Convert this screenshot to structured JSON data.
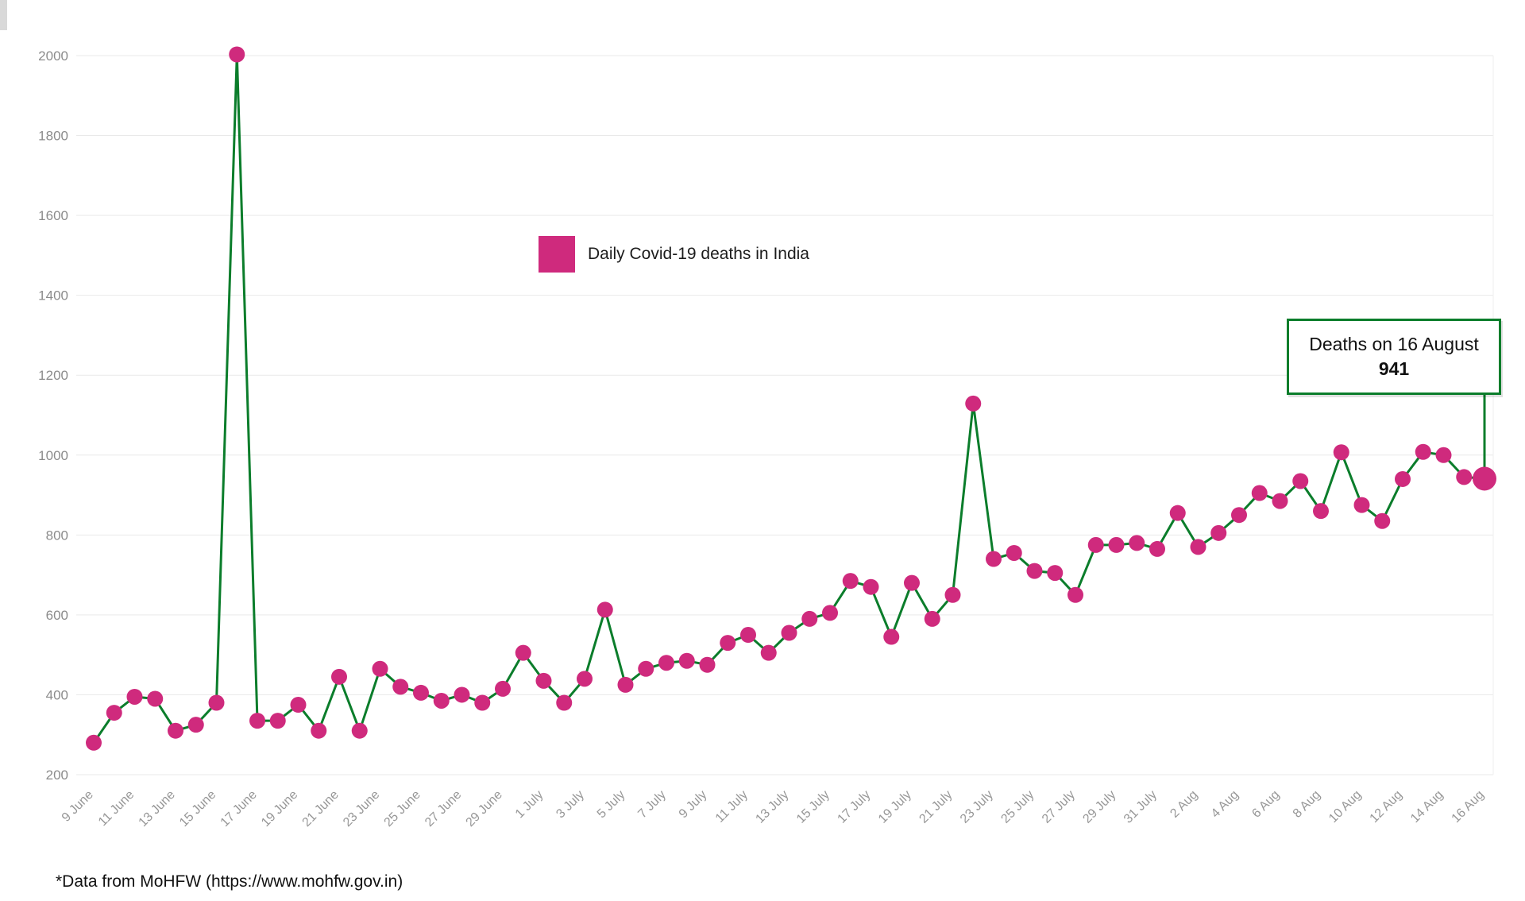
{
  "page": {
    "footer_note": "*Data from MoHFW (https://www.mohfw.gov.in)"
  },
  "legend": {
    "label": "Daily Covid-19 deaths in India"
  },
  "annotation": {
    "title": "Deaths on 16 August",
    "value": "941"
  },
  "chart_data": {
    "type": "line",
    "title": "Daily Covid-19 deaths in India",
    "x": [
      "9 June",
      "10 June",
      "11 June",
      "12 June",
      "13 June",
      "14 June",
      "15 June",
      "16 June",
      "17 June",
      "18 June",
      "19 June",
      "20 June",
      "21 June",
      "22 June",
      "23 June",
      "24 June",
      "25 June",
      "26 June",
      "27 June",
      "28 June",
      "29 June",
      "30 June",
      "1 July",
      "2 July",
      "3 July",
      "4 July",
      "5 July",
      "6 July",
      "7 July",
      "8 July",
      "9 July",
      "10 July",
      "11 July",
      "12 July",
      "13 July",
      "14 July",
      "15 July",
      "16 July",
      "17 July",
      "18 July",
      "19 July",
      "20 July",
      "21 July",
      "22 July",
      "23 July",
      "24 July",
      "25 July",
      "26 July",
      "27 July",
      "28 July",
      "29 July",
      "30 July",
      "31 July",
      "1 Aug",
      "2 Aug",
      "3 Aug",
      "4 Aug",
      "5 Aug",
      "6 Aug",
      "7 Aug",
      "8 Aug",
      "9 Aug",
      "10 Aug",
      "11 Aug",
      "12 Aug",
      "13 Aug",
      "14 Aug",
      "15 Aug",
      "16 Aug"
    ],
    "values": [
      280,
      355,
      395,
      390,
      310,
      325,
      380,
      2003,
      335,
      335,
      375,
      310,
      445,
      310,
      465,
      420,
      405,
      385,
      400,
      380,
      415,
      505,
      435,
      380,
      440,
      613,
      425,
      465,
      480,
      485,
      475,
      530,
      550,
      505,
      555,
      590,
      605,
      685,
      670,
      545,
      680,
      590,
      650,
      1129,
      740,
      755,
      710,
      705,
      650,
      775,
      775,
      780,
      765,
      855,
      770,
      805,
      850,
      905,
      885,
      935,
      860,
      1007,
      875,
      835,
      940,
      1008,
      1000,
      945,
      941
    ],
    "ylim": [
      200,
      2000
    ],
    "y_ticks": [
      200,
      400,
      600,
      800,
      1000,
      1200,
      1400,
      1600,
      1800,
      2000
    ],
    "x_tick_every": 2,
    "grid": "horizontal",
    "legend_position": "top-center",
    "line_color": "#0b7d2b",
    "marker_color": "#cf2a7d",
    "grid_color": "#e9e9e9",
    "tick_label_color": "#979797"
  }
}
